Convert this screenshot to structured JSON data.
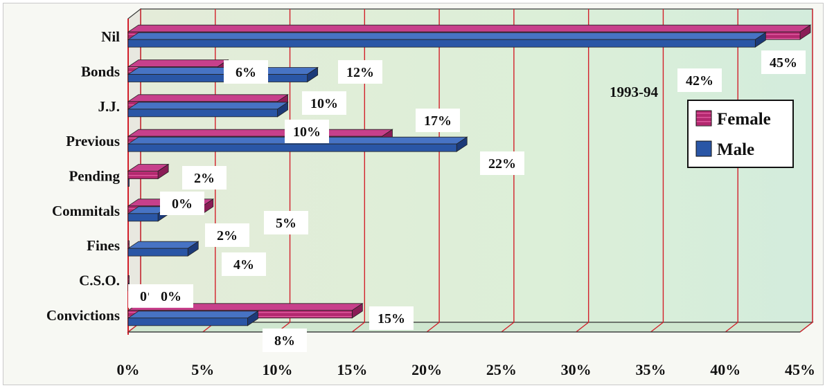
{
  "chart_data": {
    "type": "bar",
    "orientation": "horizontal",
    "annotation": "1993-94",
    "categories": [
      "Nil",
      "Bonds",
      "J.J.",
      "Previous",
      "Pending",
      "Commitals",
      "Fines",
      "C.S.O.",
      "Convictions"
    ],
    "series": [
      {
        "name": "Female",
        "color": "#b3286f",
        "values": [
          45,
          6,
          10,
          17,
          2,
          5,
          0,
          0,
          15
        ],
        "labels": [
          "45%",
          "6%",
          "10%",
          "17%",
          "2%",
          "5%",
          "0%",
          "0%",
          "15%"
        ]
      },
      {
        "name": "Male",
        "color": "#2a56a6",
        "values": [
          42,
          12,
          10,
          22,
          0,
          2,
          4,
          0,
          8
        ],
        "labels": [
          "42%",
          "12%",
          "10%",
          "22%",
          "0%",
          "2%",
          "4%",
          "0%",
          "8%"
        ]
      }
    ],
    "xlim": [
      0,
      45
    ],
    "xticks": [
      "0%",
      "5%",
      "10%",
      "15%",
      "20%",
      "25%",
      "30%",
      "35%",
      "40%",
      "45%"
    ],
    "grid": true,
    "legend_position": "right"
  }
}
